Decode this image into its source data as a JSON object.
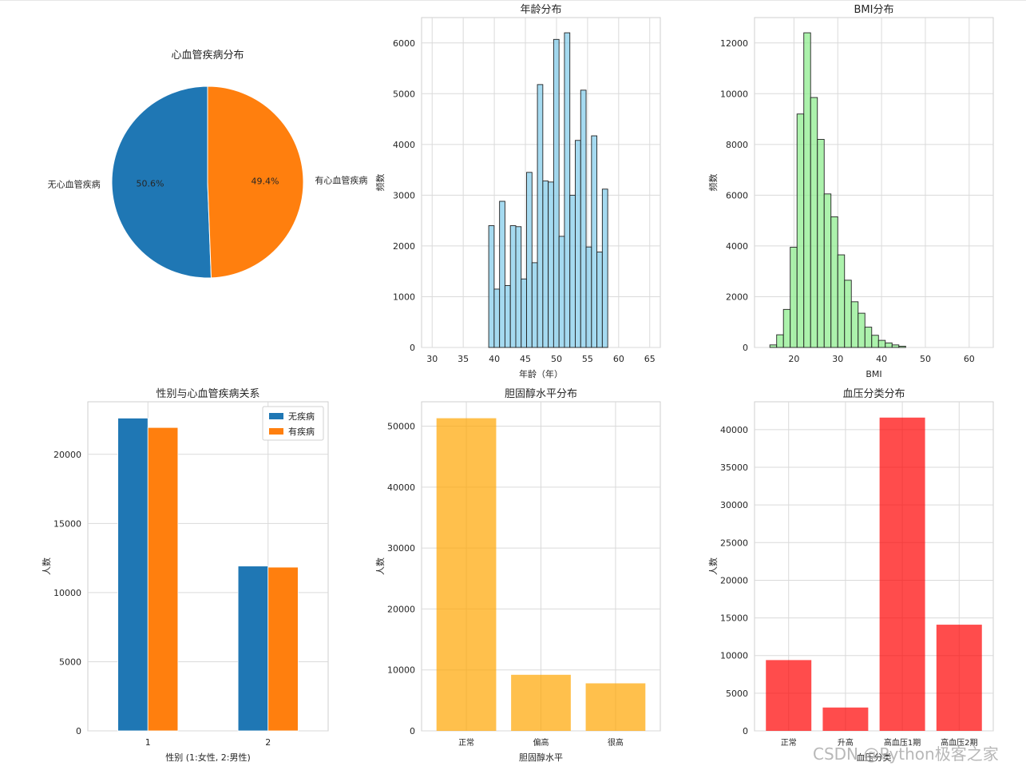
{
  "watermark": "CSDN @Python极客之家",
  "colors": {
    "blue": "#1f77b4",
    "orange": "#ff7f0e",
    "skyblue": "#87ceeb",
    "lightgreen": "#90ee90",
    "gold": "#ffa500",
    "red": "#ff0000",
    "grid": "#dadada",
    "spine": "#cfcfcf",
    "text": "#262626"
  },
  "chart_data": [
    {
      "type": "pie",
      "title": "心血管疾病分布",
      "labels": [
        "无心血管疾病",
        "有心血管疾病"
      ],
      "values": [
        50.6,
        49.4
      ],
      "autopct": [
        "50.6%",
        "49.4%"
      ],
      "colors": [
        "#1f77b4",
        "#ff7f0e"
      ]
    },
    {
      "type": "bar",
      "subtype": "histogram",
      "title": "年龄分布",
      "xlabel": "年龄（年）",
      "ylabel": "频数",
      "xlim": [
        28.3,
        66.7
      ],
      "ylim": [
        0,
        6500
      ],
      "xticks": [
        30,
        35,
        40,
        45,
        50,
        55,
        60,
        65
      ],
      "yticks": [
        0,
        1000,
        2000,
        3000,
        4000,
        5000,
        6000
      ],
      "bin_start": 39.1,
      "bin_width": 0.87,
      "values": [
        2400,
        1150,
        2880,
        1220,
        2400,
        2380,
        1350,
        3450,
        1670,
        5180,
        3280,
        3260,
        6070,
        2190,
        6200,
        3000,
        4080,
        5070,
        1980,
        4170,
        1880,
        3120
      ],
      "color": "#87ceeb",
      "grid": true
    },
    {
      "type": "bar",
      "subtype": "histogram",
      "title": "BMI分布",
      "xlabel": "BMI",
      "ylabel": "频数",
      "xlim": [
        11,
        65.5
      ],
      "ylim": [
        0,
        13000
      ],
      "xticks": [
        20,
        30,
        40,
        50,
        60
      ],
      "yticks": [
        0,
        2000,
        4000,
        6000,
        8000,
        10000,
        12000
      ],
      "bin_start": 14.5,
      "bin_width": 1.55,
      "values": [
        100,
        500,
        1500,
        3950,
        9200,
        12400,
        9850,
        8200,
        6050,
        5150,
        3650,
        2650,
        1800,
        1350,
        800,
        480,
        280,
        180,
        100,
        50
      ],
      "color": "#90ee90",
      "grid": true
    },
    {
      "type": "bar",
      "title": "性别与心血管疾病关系",
      "xlabel": "性别 (1:女性, 2:男性)",
      "ylabel": "人数",
      "categories": [
        "1",
        "2"
      ],
      "ylim": [
        0,
        23800
      ],
      "yticks": [
        0,
        5000,
        10000,
        15000,
        20000
      ],
      "series": [
        {
          "name": "无疾病",
          "values": [
            22620,
            11920
          ],
          "color": "#1f77b4"
        },
        {
          "name": "有疾病",
          "values": [
            21940,
            11840
          ],
          "color": "#ff7f0e"
        }
      ],
      "legend": "top-right",
      "grid": true
    },
    {
      "type": "bar",
      "title": "胆固醇水平分布",
      "xlabel": "胆固醇水平",
      "ylabel": "人数",
      "categories": [
        "正常",
        "偏高",
        "很高"
      ],
      "values": [
        51300,
        9200,
        7800
      ],
      "ylim": [
        0,
        54000
      ],
      "yticks": [
        0,
        10000,
        20000,
        30000,
        40000,
        50000
      ],
      "color": "#ffa500",
      "alpha": 0.7,
      "grid": true
    },
    {
      "type": "bar",
      "title": "血压分类分布",
      "xlabel": "血压分类",
      "ylabel": "人数",
      "categories": [
        "正常",
        "升高",
        "高血压1期",
        "高血压2期"
      ],
      "values": [
        9400,
        3100,
        41600,
        14100
      ],
      "ylim": [
        0,
        43700
      ],
      "yticks": [
        0,
        5000,
        10000,
        15000,
        20000,
        25000,
        30000,
        35000,
        40000
      ],
      "color": "#ff0000",
      "alpha": 0.7,
      "grid": true
    }
  ]
}
